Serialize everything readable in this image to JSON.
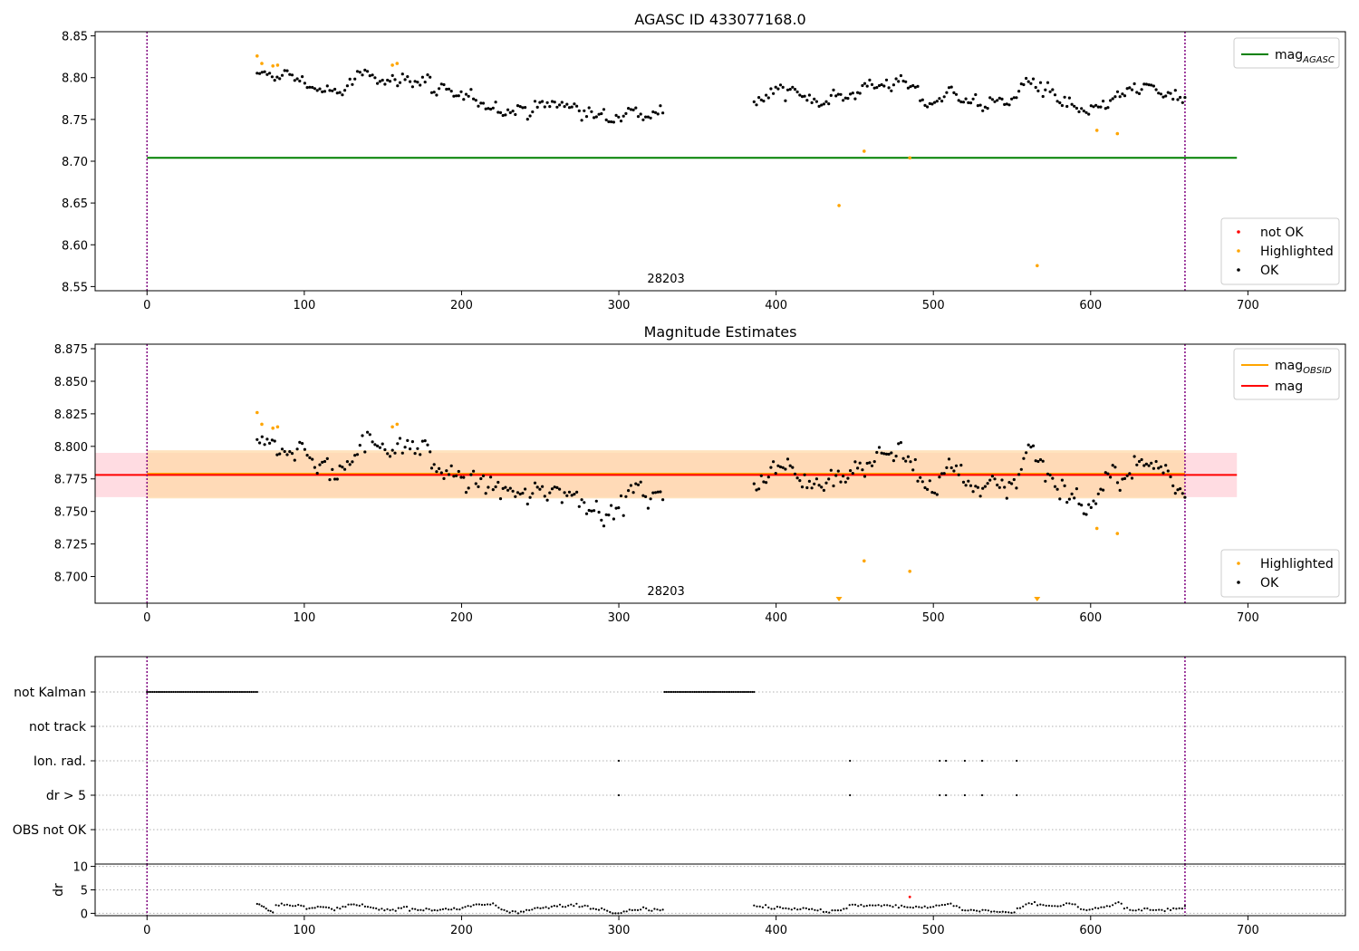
{
  "figure": {
    "subplot_titles": [
      "AGASC ID 433077168.0",
      "Magnitude Estimates"
    ],
    "obsid_label": "28203"
  },
  "colors": {
    "ok": "#000000",
    "highlighted": "#ffa500",
    "not_ok": "#ff0000",
    "mag_agasc": "#008000",
    "mag_obsid": "#ffa500",
    "mag": "#ff0000",
    "vline": "#800080",
    "grid": "#b0b0b0"
  },
  "chart_data": [
    {
      "type": "scatter",
      "title": "AGASC ID 433077168.0",
      "xlim": [
        -33,
        762
      ],
      "ylim": [
        8.545,
        8.855
      ],
      "xticks": [
        0,
        100,
        200,
        300,
        400,
        500,
        600,
        700
      ],
      "yticks": [
        8.55,
        8.6,
        8.65,
        8.7,
        8.75,
        8.8,
        8.85
      ],
      "vlines": [
        0,
        660
      ],
      "hlines": [
        {
          "name": "mag_AGASC",
          "y": 8.704,
          "x0": 0,
          "x1": 693
        }
      ],
      "annotation": {
        "text": "28203",
        "x": 330
      },
      "ok_segments": [
        {
          "x0": 70,
          "x1": 180,
          "anchors": [
            [
              70,
              8.8
            ],
            [
              90,
              8.804
            ],
            [
              100,
              8.795
            ],
            [
              120,
              8.778
            ],
            [
              140,
              8.806
            ],
            [
              160,
              8.797
            ],
            [
              180,
              8.799
            ]
          ],
          "noise": 0.0055,
          "n": 70
        },
        {
          "x0": 181,
          "x1": 328,
          "anchors": [
            [
              181,
              8.784
            ],
            [
              200,
              8.775
            ],
            [
              220,
              8.768
            ],
            [
              240,
              8.76
            ],
            [
              260,
              8.77
            ],
            [
              280,
              8.758
            ],
            [
              295,
              8.748
            ],
            [
              310,
              8.765
            ],
            [
              328,
              8.76
            ]
          ],
          "noise": 0.0055,
          "n": 95
        },
        {
          "x0": 386,
          "x1": 660,
          "anchors": [
            [
              386,
              8.774
            ],
            [
              400,
              8.785
            ],
            [
              420,
              8.776
            ],
            [
              440,
              8.778
            ],
            [
              460,
              8.79
            ],
            [
              480,
              8.795
            ],
            [
              500,
              8.765
            ],
            [
              510,
              8.785
            ],
            [
              530,
              8.768
            ],
            [
              550,
              8.77
            ],
            [
              560,
              8.8
            ],
            [
              580,
              8.77
            ],
            [
              600,
              8.752
            ],
            [
              610,
              8.77
            ],
            [
              630,
              8.785
            ],
            [
              645,
              8.784
            ],
            [
              660,
              8.766
            ]
          ],
          "noise": 0.006,
          "n": 180
        }
      ],
      "highlighted_points": [
        [
          70,
          8.826
        ],
        [
          73,
          8.817
        ],
        [
          80,
          8.814
        ],
        [
          83,
          8.815
        ],
        [
          156,
          8.815
        ],
        [
          159,
          8.817
        ],
        [
          440,
          8.647
        ],
        [
          456,
          8.712
        ],
        [
          485,
          8.704
        ],
        [
          566,
          8.575
        ],
        [
          604,
          8.737
        ],
        [
          617,
          8.733
        ]
      ],
      "legend_lines": [
        {
          "label": "mag",
          "sub": "AGASC",
          "color": "#008000"
        }
      ],
      "legend_points": [
        {
          "label": "not OK",
          "color": "#ff0000"
        },
        {
          "label": "Highlighted",
          "color": "#ffa500"
        },
        {
          "label": "OK",
          "color": "#000000"
        }
      ]
    },
    {
      "type": "scatter",
      "title": "Magnitude Estimates",
      "xlim": [
        -33,
        762
      ],
      "ylim": [
        8.6795,
        8.8785
      ],
      "xticks": [
        0,
        100,
        200,
        300,
        400,
        500,
        600,
        700
      ],
      "yticks": [
        8.7,
        8.725,
        8.75,
        8.775,
        8.8,
        8.825,
        8.85,
        8.875
      ],
      "vlines": [
        0,
        660
      ],
      "bands": [
        {
          "name": "mag",
          "y0": 8.761,
          "y1": 8.795,
          "x0": -33,
          "x1": 693,
          "color": "#ffd0d8"
        },
        {
          "name": "mag_OBSID",
          "y0": 8.76,
          "y1": 8.797,
          "x0": 0,
          "x1": 660,
          "color": "#ffd9a8"
        }
      ],
      "hlines": [
        {
          "name": "mag_OBSID",
          "y": 8.779,
          "x0": 0,
          "x1": 660
        },
        {
          "name": "mag",
          "y": 8.778,
          "x0": -33,
          "x1": 693
        }
      ],
      "annotation": {
        "text": "28203",
        "x": 330
      },
      "highlighted_points": [
        [
          70,
          8.826
        ],
        [
          73,
          8.817
        ],
        [
          80,
          8.814
        ],
        [
          83,
          8.815
        ],
        [
          156,
          8.815
        ],
        [
          159,
          8.817
        ],
        [
          456,
          8.712
        ],
        [
          485,
          8.704
        ],
        [
          604,
          8.737
        ],
        [
          617,
          8.733
        ]
      ],
      "offscale_markers": [
        440,
        566
      ],
      "legend_lines": [
        {
          "label": "mag",
          "sub": "OBSID",
          "color": "#ffa500"
        },
        {
          "label": "mag",
          "sub": "",
          "color": "#ff0000"
        }
      ],
      "legend_points": [
        {
          "label": "Highlighted",
          "color": "#ffa500"
        },
        {
          "label": "OK",
          "color": "#000000"
        }
      ]
    },
    {
      "type": "scatter",
      "title": "",
      "xlim": [
        -33,
        762
      ],
      "categories": [
        "not Kalman",
        "not track",
        "Ion. rad.",
        "dr > 5",
        "OBS not OK"
      ],
      "vlines": [
        0,
        660
      ],
      "flags": [
        {
          "label": "not Kalman",
          "ranges": [
            [
              0,
              70
            ],
            [
              329,
              386
            ]
          ],
          "points": []
        },
        {
          "label": "not track",
          "ranges": [],
          "points": []
        },
        {
          "label": "Ion. rad.",
          "ranges": [],
          "points": [
            300,
            447,
            504,
            508,
            520,
            531,
            553
          ]
        },
        {
          "label": "dr > 5",
          "ranges": [],
          "points": [
            300,
            447,
            504,
            508,
            520,
            531,
            553
          ]
        },
        {
          "label": "OBS not OK",
          "ranges": [],
          "points": []
        }
      ]
    },
    {
      "type": "scatter",
      "title": "",
      "ylabel": "dr",
      "xlim": [
        -33,
        762
      ],
      "ylim": [
        -0.5,
        10.5
      ],
      "xticks": [
        0,
        100,
        200,
        300,
        400,
        500,
        600,
        700
      ],
      "yticks": [
        0,
        5,
        10
      ],
      "vlines": [
        0,
        660
      ],
      "clipped_ranges": [
        [
          0,
          70
        ],
        [
          329,
          386
        ]
      ],
      "clipped_points": [
        300,
        447,
        504,
        508,
        520,
        531,
        553
      ],
      "red_points": [
        [
          485,
          3.5
        ]
      ],
      "ok_segments": [
        {
          "x0": 70,
          "x1": 80,
          "anchors": [
            [
              70,
              2.2
            ],
            [
              80,
              0.3
            ]
          ],
          "noise": 0.1,
          "n": 8
        },
        {
          "x0": 82,
          "x1": 328,
          "anchors": [
            [
              82,
              1.7
            ],
            [
              110,
              1.2
            ],
            [
              120,
              0.6
            ],
            [
              130,
              1.8
            ],
            [
              150,
              0.7
            ],
            [
              165,
              1.3
            ],
            [
              180,
              0.8
            ],
            [
              200,
              1.2
            ],
            [
              220,
              1.8
            ],
            [
              230,
              0.4
            ],
            [
              260,
              1.4
            ],
            [
              275,
              1.7
            ],
            [
              300,
              0.4
            ],
            [
              315,
              1.1
            ],
            [
              328,
              0.8
            ]
          ],
          "noise": 0.25,
          "n": 140
        },
        {
          "x0": 386,
          "x1": 660,
          "anchors": [
            [
              386,
              1.4
            ],
            [
              410,
              1.3
            ],
            [
              430,
              0.8
            ],
            [
              440,
              0.2
            ],
            [
              450,
              1.9
            ],
            [
              470,
              1.4
            ],
            [
              500,
              1.6
            ],
            [
              510,
              2.1
            ],
            [
              520,
              0.6
            ],
            [
              540,
              0.4
            ],
            [
              550,
              0.1
            ],
            [
              560,
              1.8
            ],
            [
              580,
              1.5
            ],
            [
              585,
              2.1
            ],
            [
              595,
              0.6
            ],
            [
              610,
              1.4
            ],
            [
              618,
              1.9
            ],
            [
              625,
              0.5
            ],
            [
              640,
              0.9
            ],
            [
              660,
              1.2
            ]
          ],
          "noise": 0.25,
          "n": 150
        }
      ]
    }
  ]
}
